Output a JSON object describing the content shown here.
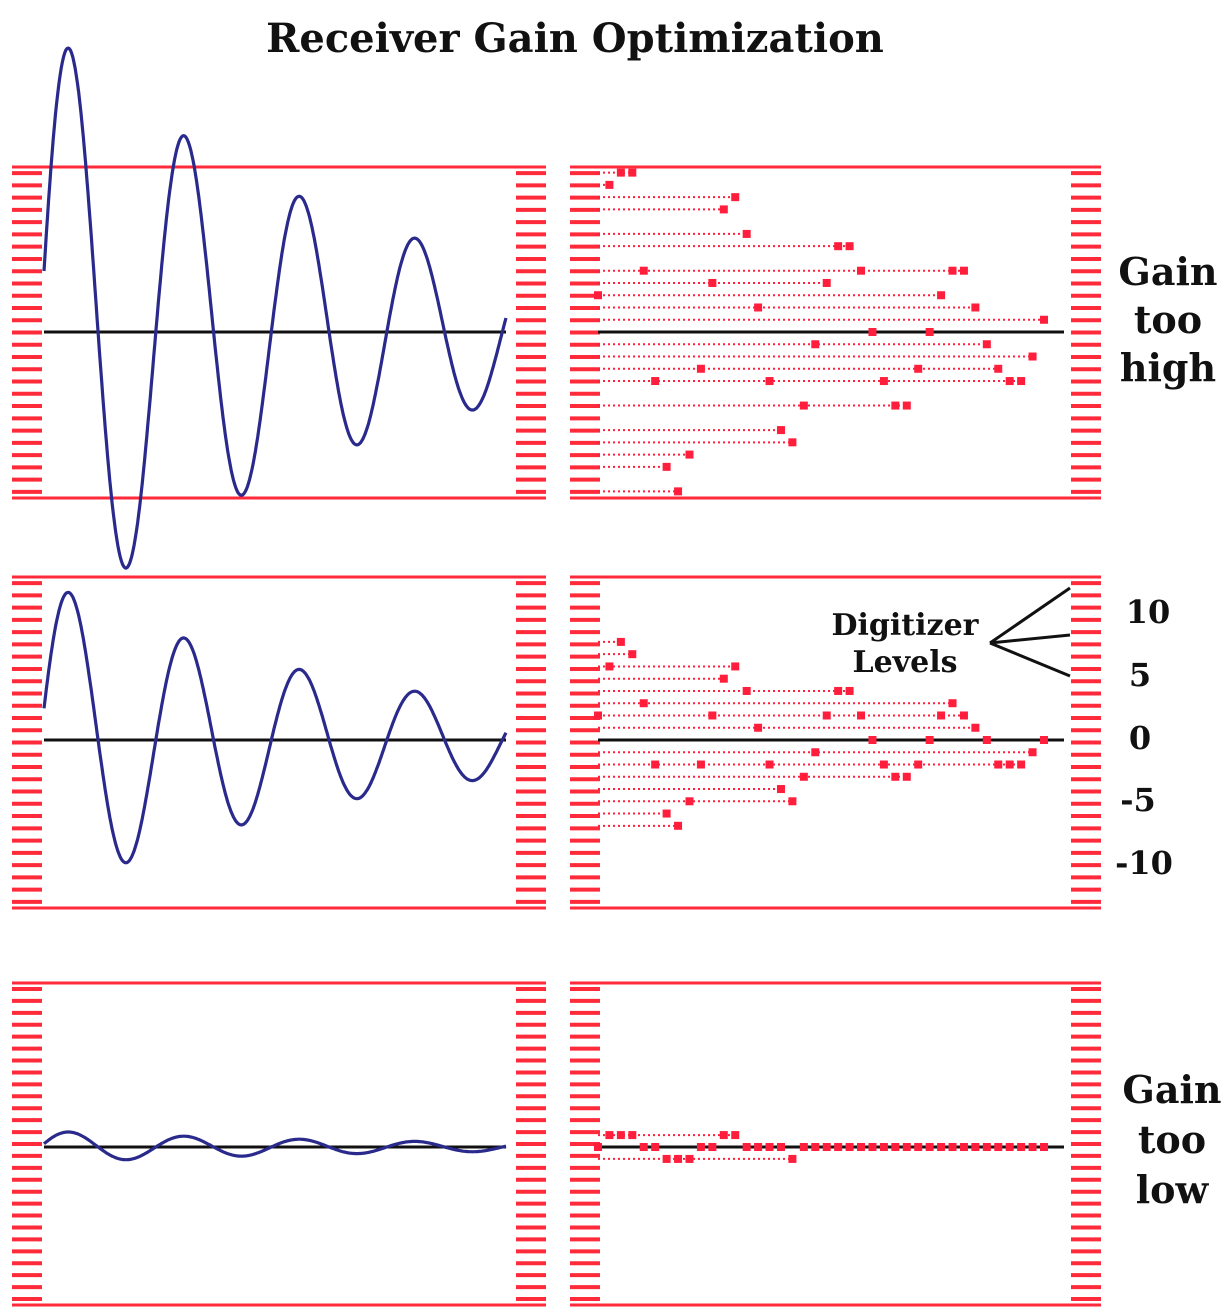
{
  "title": "Receiver Gain Optimization",
  "rows": [
    {
      "label_lines": [
        "Gain",
        "too",
        "high"
      ],
      "amplitude": 1.9,
      "decay": 0.18
    },
    {
      "label_lines": [],
      "amplitude": 1.0,
      "decay": 0.18
    },
    {
      "label_lines": [
        "Gain",
        "too",
        "low"
      ],
      "amplitude": 0.1,
      "decay": 0.16
    }
  ],
  "digitizer": {
    "label_line1": "Digitizer",
    "label_line2": "Levels",
    "levels": [
      {
        "value": 10,
        "text": "10"
      },
      {
        "value": 5,
        "text": "5"
      },
      {
        "value": 0,
        "text": "0"
      },
      {
        "value": -5,
        "text": "-5"
      },
      {
        "value": -10,
        "text": "-10"
      }
    ],
    "range": [
      -13,
      13
    ]
  },
  "colors": {
    "frame": "#ff2a3a",
    "tick": "#ff2a3a",
    "signal": "#2a2a8c",
    "baseline": "#111111",
    "sample": "#ff1e3c"
  }
}
